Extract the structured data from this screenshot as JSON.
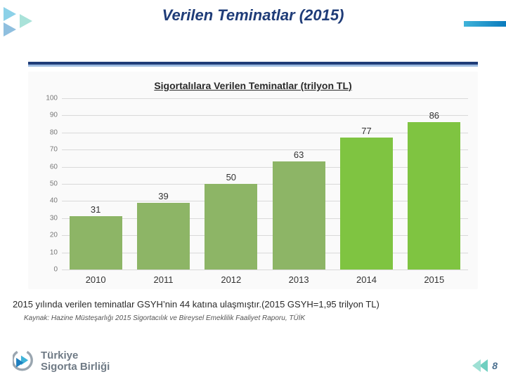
{
  "page_title": "Verilen Teminatlar (2015)",
  "title_color": "#1f3c78",
  "divider_color": "#1f3c78",
  "chart": {
    "type": "bar",
    "title": "Sigortalılara Verilen Teminatlar (trilyon TL)",
    "background_color": "#fafafa",
    "grid_color": "#d9d9d9",
    "ylim": [
      0,
      100
    ],
    "ytick_step": 10,
    "yticks": [
      "0",
      "10",
      "20",
      "30",
      "40",
      "50",
      "60",
      "70",
      "80",
      "90",
      "100"
    ],
    "label_fontsize": 13,
    "bars": [
      {
        "category": "2010",
        "value": 31,
        "color": "#8db566"
      },
      {
        "category": "2011",
        "value": 39,
        "color": "#8db566"
      },
      {
        "category": "2012",
        "value": 50,
        "color": "#8db566"
      },
      {
        "category": "2013",
        "value": 63,
        "color": "#8db566"
      },
      {
        "category": "2014",
        "value": 77,
        "color": "#7fc441"
      },
      {
        "category": "2015",
        "value": 86,
        "color": "#7fc441"
      }
    ]
  },
  "note": "2015 yılında verilen teminatlar GSYH’nin 44 katına ulaşmıştır.(2015 GSYH=1,95 trilyon TL)",
  "source": "Kaynak: Hazine Müsteşarlığı 2015 Sigortacılık ve Bireysel Emeklilik Faaliyet Raporu, TÜİK",
  "logo": {
    "line1": "Türkiye",
    "line2": "Sigorta Birliği",
    "text_color": "#6f7a85",
    "mark_color_outer": "#9aa6b0",
    "mark_color_inner": "#3fb3d9"
  },
  "page_number": "8",
  "page_arrow_color": "#6fcfc0"
}
